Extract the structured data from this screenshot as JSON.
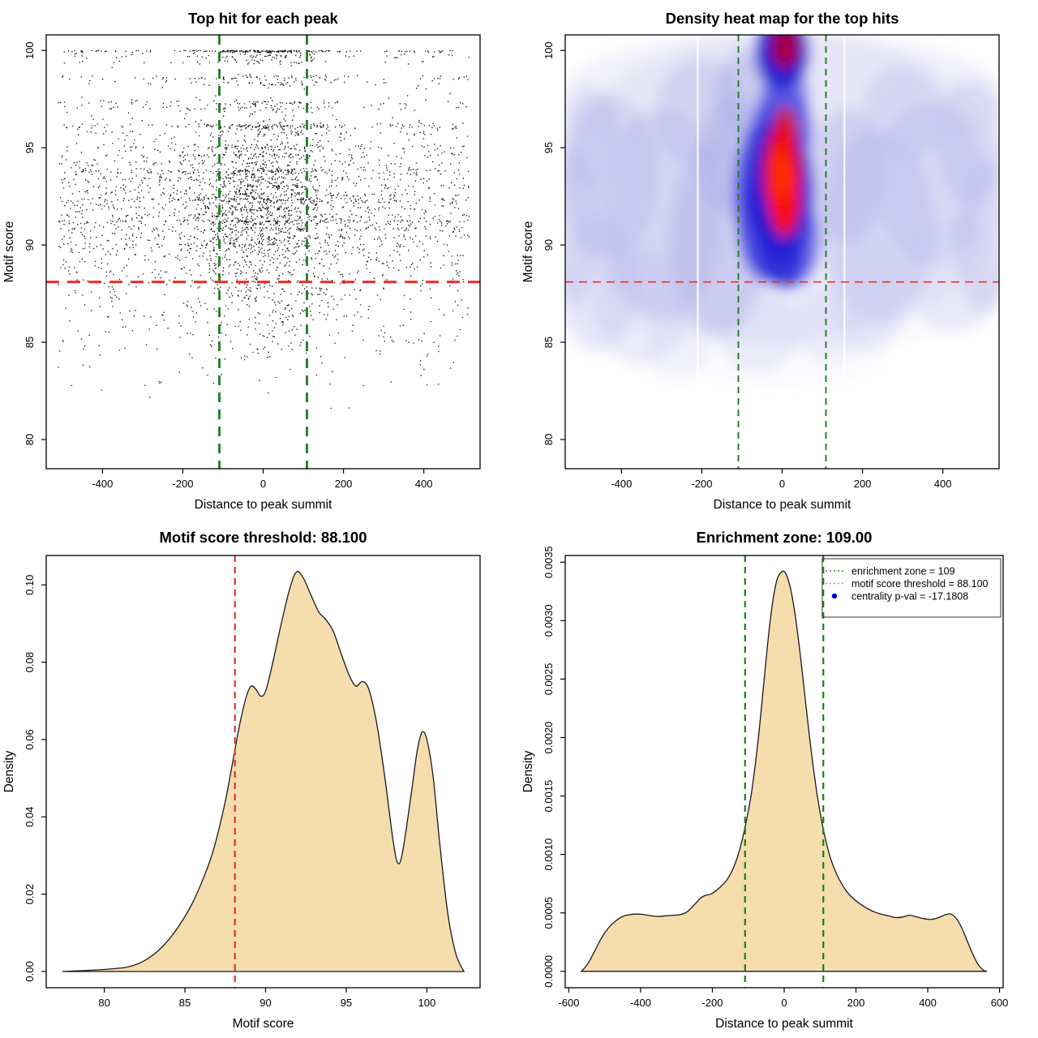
{
  "page": {
    "background": "#ffffff"
  },
  "colors": {
    "threshold_red": "#e53229",
    "enrichment_green": "#1d7d1d",
    "density_fill_tan": "#f5ddae",
    "curve_stroke": "#1a1a1a",
    "point_black": "#000000",
    "legend_red_key": "#e87b7b",
    "legend_blue_dot": "#0000e6",
    "heat_hot_red": "#ff2d00",
    "heat_blue": "#1414cf"
  },
  "chart_data": [
    {
      "id": "top-hit-scatter",
      "type": "scatter",
      "title": "Top hit for each peak",
      "xlabel": "Distance to peak summit",
      "ylabel": "Motif score",
      "xlim": [
        -540,
        540
      ],
      "ylim": [
        78.5,
        100.8
      ],
      "xticks": {
        "values": [
          -400,
          -200,
          0,
          200,
          400
        ],
        "labels": [
          "-400",
          "-200",
          "0",
          "200",
          "400"
        ]
      },
      "yticks": {
        "values": [
          80,
          85,
          90,
          95,
          100
        ],
        "labels": [
          "80",
          "85",
          "90",
          "95",
          "100"
        ]
      },
      "vlines": [
        {
          "x": -109,
          "color": "#1d7d1d",
          "width": 2.8,
          "dash": "12,9",
          "name": "enrichment-zone-left-line"
        },
        {
          "x": 109,
          "color": "#1d7d1d",
          "width": 2.8,
          "dash": "12,9",
          "name": "enrichment-zone-right-line"
        }
      ],
      "hlines": [
        {
          "y": 88.1,
          "color": "#e53229",
          "width": 3.2,
          "dash": "16,10",
          "name": "motif-threshold-line"
        }
      ],
      "scatter": {
        "seed": 1337,
        "dot_size": 1.35,
        "x_uniform_max": 512,
        "bands": [
          [
            100,
            230,
            0.62
          ],
          [
            99.7,
            70,
            0.5
          ],
          [
            99.4,
            45,
            0.5
          ],
          [
            98.6,
            80,
            0.45
          ],
          [
            98.3,
            55,
            0.45
          ],
          [
            97.3,
            70,
            0.45
          ],
          [
            97.0,
            55,
            0.45
          ],
          [
            96.1,
            170,
            0.5
          ],
          [
            95.7,
            45,
            0.45
          ],
          [
            95.0,
            70,
            0.45
          ],
          [
            94.6,
            55,
            0.45
          ],
          [
            94.2,
            45,
            0.5
          ],
          [
            93.8,
            140,
            0.55
          ],
          [
            93.4,
            65,
            0.5
          ],
          [
            93.0,
            55,
            0.5
          ],
          [
            92.6,
            65,
            0.5
          ],
          [
            92.3,
            150,
            0.55
          ],
          [
            91.9,
            65,
            0.5
          ],
          [
            91.5,
            55,
            0.5
          ],
          [
            91.2,
            160,
            0.5
          ],
          [
            90.8,
            60,
            0.45
          ],
          [
            90.4,
            55,
            0.45
          ],
          [
            90.0,
            50,
            0.45
          ]
        ],
        "clusters": [
          {
            "n": 2150,
            "mean": 91.2,
            "sd": 2.9,
            "ymin": 78.8,
            "ymax": 99.3,
            "cf": 0.42,
            "xsd": 100
          },
          {
            "n": 140,
            "mean": 85.3,
            "sd": 1.9,
            "ymin": 79.2,
            "ymax": 88.5,
            "cf": 0.35,
            "xsd": 130
          }
        ]
      }
    },
    {
      "id": "density-heatmap",
      "type": "heatmap",
      "title": "Density heat map for the top hits",
      "xlabel": "Distance to peak summit",
      "ylabel": "Motif score",
      "xlim": [
        -540,
        540
      ],
      "ylim": [
        78.5,
        100.8
      ],
      "xticks": {
        "values": [
          -400,
          -200,
          0,
          200,
          400
        ],
        "labels": [
          "-400",
          "-200",
          "0",
          "200",
          "400"
        ]
      },
      "yticks": {
        "values": [
          80,
          85,
          90,
          95,
          100
        ],
        "labels": [
          "80",
          "85",
          "90",
          "95",
          "100"
        ]
      },
      "vlines": [
        {
          "x": -109,
          "color": "#1d7d1d",
          "width": 1.9,
          "dash": "8,6",
          "name": "enrichment-zone-left-line"
        },
        {
          "x": 109,
          "color": "#1d7d1d",
          "width": 1.9,
          "dash": "8,6",
          "name": "enrichment-zone-right-line"
        }
      ],
      "hlines": [
        {
          "y": 88.1,
          "color": "#e53229",
          "width": 1.7,
          "dash": "10,7",
          "name": "motif-threshold-line"
        }
      ],
      "white_vlines": [
        -210,
        155
      ],
      "blobs": [
        [
          0,
          93,
          560,
          8,
          "#dcdcf6",
          0.5
        ],
        [
          0,
          97.5,
          560,
          3.5,
          "#dcdcf6",
          0.4
        ],
        [
          0,
          87.5,
          560,
          2.8,
          "#e8e8fa",
          0.3
        ],
        [
          -430,
          93.5,
          120,
          4.2,
          "#b8b8ec",
          0.42
        ],
        [
          -300,
          91.5,
          150,
          5.5,
          "#b8b8ec",
          0.45
        ],
        [
          -160,
          90.3,
          120,
          5,
          "#b0b0ea",
          0.5
        ],
        [
          -460,
          88,
          100,
          3.5,
          "#b8b8ec",
          0.32
        ],
        [
          -350,
          86.8,
          120,
          3,
          "#c0c0ee",
          0.3
        ],
        [
          -205,
          96.8,
          110,
          2.8,
          "#b8b8ec",
          0.42
        ],
        [
          -90,
          97.8,
          80,
          2.2,
          "#acace9",
          0.5
        ],
        [
          -480,
          95.5,
          70,
          2.6,
          "#b8b8ec",
          0.36
        ],
        [
          -260,
          84.8,
          80,
          1.8,
          "#ccccf1",
          0.22
        ],
        [
          240,
          91,
          140,
          5,
          "#b8b8ec",
          0.44
        ],
        [
          370,
          93.2,
          140,
          4.2,
          "#bcbcee",
          0.42
        ],
        [
          470,
          95.3,
          90,
          3.2,
          "#b8b8ec",
          0.38
        ],
        [
          300,
          96.8,
          100,
          2.5,
          "#bcbcee",
          0.38
        ],
        [
          430,
          88.5,
          120,
          3,
          "#c6c6f0",
          0.3
        ],
        [
          210,
          87.3,
          100,
          2.8,
          "#c6c6f0",
          0.32
        ],
        [
          120,
          85.8,
          90,
          2,
          "#d0d0f3",
          0.26
        ],
        [
          -60,
          85.6,
          100,
          2.2,
          "#c6c6f0",
          0.3
        ],
        [
          0,
          84.3,
          260,
          1.6,
          "#e0e0f8",
          0.16
        ],
        [
          500,
          90.5,
          70,
          4,
          "#b8b8ec",
          0.36
        ],
        [
          -515,
          91,
          60,
          4,
          "#b8b8ec",
          0.36
        ],
        [
          160,
          93.5,
          90,
          3.5,
          "#b0b0ea",
          0.42
        ],
        [
          -120,
          94.5,
          90,
          3,
          "#acace9",
          0.48
        ],
        [
          -20,
          92.6,
          100,
          4.4,
          "#4343e2",
          0.85
        ],
        [
          15,
          90.2,
          80,
          2.5,
          "#4343e2",
          0.7
        ],
        [
          0,
          95.9,
          75,
          2.3,
          "#4343e2",
          0.8
        ],
        [
          8,
          97.7,
          60,
          1.6,
          "#5050e4",
          0.55
        ],
        [
          -40,
          91,
          70,
          3,
          "#4343e2",
          0.55
        ],
        [
          0,
          99.9,
          68,
          2,
          "#2a2ad6",
          0.92
        ],
        [
          -8,
          92.9,
          78,
          3.6,
          "#1414cf",
          0.9
        ],
        [
          3,
          99.97,
          52,
          1.5,
          "#1111cc",
          0.9
        ],
        [
          0,
          89.5,
          58,
          1.7,
          "#2222d2",
          0.65
        ],
        [
          0,
          93.7,
          48,
          2.5,
          "#e60000",
          0.95
        ],
        [
          6,
          92.5,
          40,
          2.1,
          "#ff0d00",
          0.92
        ],
        [
          -2,
          93.9,
          27,
          1.6,
          "#ff2d00",
          1
        ],
        [
          8,
          95.8,
          30,
          1.3,
          "#f01000",
          0.8
        ],
        [
          8,
          100.2,
          36,
          1.15,
          "#ad0040",
          0.95
        ]
      ]
    },
    {
      "id": "motif-score-density",
      "type": "density",
      "title": "Motif score threshold: 88.100",
      "xlabel": "Motif score",
      "ylabel": "Density",
      "xlim": [
        76.4,
        103.3
      ],
      "ylim": [
        -0.0042,
        0.1076
      ],
      "xticks": {
        "values": [
          80,
          85,
          90,
          95,
          100
        ],
        "labels": [
          "80",
          "85",
          "90",
          "95",
          "100"
        ]
      },
      "yticks": {
        "values": [
          0,
          0.02,
          0.04,
          0.06,
          0.08,
          0.1
        ],
        "labels": [
          "0.00",
          "0.02",
          "0.04",
          "0.06",
          "0.08",
          "0.10"
        ]
      },
      "vlines": [
        {
          "x": 88.1,
          "color": "#e53229",
          "width": 2.2,
          "dash": "8,6",
          "name": "motif-threshold-line"
        }
      ],
      "hlines": [],
      "fill": "#f5ddae",
      "curve": [
        [
          77.4,
          0
        ],
        [
          78.5,
          0.0002
        ],
        [
          79.5,
          0.0004
        ],
        [
          80.5,
          0.0007
        ],
        [
          81.5,
          0.0012
        ],
        [
          82.5,
          0.0028
        ],
        [
          83.5,
          0.006
        ],
        [
          84.5,
          0.011
        ],
        [
          85.5,
          0.018
        ],
        [
          86.5,
          0.028
        ],
        [
          87,
          0.035
        ],
        [
          87.5,
          0.044
        ],
        [
          88,
          0.055
        ],
        [
          88.4,
          0.064
        ],
        [
          88.8,
          0.071
        ],
        [
          89.1,
          0.0738
        ],
        [
          89.4,
          0.073
        ],
        [
          89.7,
          0.0712
        ],
        [
          90,
          0.0725
        ],
        [
          90.4,
          0.079
        ],
        [
          91,
          0.0905
        ],
        [
          91.5,
          0.099
        ],
        [
          91.9,
          0.1033
        ],
        [
          92.3,
          0.1021
        ],
        [
          92.8,
          0.0975
        ],
        [
          93.3,
          0.093
        ],
        [
          93.7,
          0.0912
        ],
        [
          94.2,
          0.088
        ],
        [
          94.7,
          0.082
        ],
        [
          95.2,
          0.0765
        ],
        [
          95.6,
          0.0738
        ],
        [
          96,
          0.075
        ],
        [
          96.4,
          0.073
        ],
        [
          96.9,
          0.064
        ],
        [
          97.4,
          0.05
        ],
        [
          97.9,
          0.034
        ],
        [
          98.2,
          0.028
        ],
        [
          98.5,
          0.031
        ],
        [
          99,
          0.045
        ],
        [
          99.4,
          0.057
        ],
        [
          99.7,
          0.0619
        ],
        [
          100,
          0.06
        ],
        [
          100.4,
          0.05
        ],
        [
          100.8,
          0.033
        ],
        [
          101.3,
          0.015
        ],
        [
          101.8,
          0.0045
        ],
        [
          102.3,
          0
        ]
      ]
    },
    {
      "id": "distance-density",
      "type": "density",
      "title": "Enrichment zone: 109.00",
      "xlabel": "Distance to peak summit",
      "ylabel": "Density",
      "xlim": [
        -610,
        610
      ],
      "ylim": [
        -0.00014,
        0.003557
      ],
      "xticks": {
        "values": [
          -600,
          -400,
          -200,
          0,
          200,
          400,
          600
        ],
        "labels": [
          "-600",
          "-400",
          "-200",
          "0",
          "200",
          "400",
          "600"
        ]
      },
      "yticks": {
        "values": [
          0,
          0.0005,
          0.001,
          0.0015,
          0.002,
          0.0025,
          0.003,
          0.0035
        ],
        "labels": [
          "0.0000",
          "0.0005",
          "0.0010",
          "0.0015",
          "0.0020",
          "0.0025",
          "0.0030",
          "0.0035"
        ]
      },
      "vlines": [
        {
          "x": -109,
          "color": "#1d7d1d",
          "width": 2.2,
          "dash": "8,6",
          "name": "enrichment-zone-left-line"
        },
        {
          "x": 109,
          "color": "#1d7d1d",
          "width": 2.2,
          "dash": "8,6",
          "name": "enrichment-zone-right-line"
        }
      ],
      "hlines": [],
      "fill": "#f5ddae",
      "curve": [
        [
          -565,
          0
        ],
        [
          -548,
          6e-05
        ],
        [
          -530,
          0.00016
        ],
        [
          -510,
          0.00028
        ],
        [
          -490,
          0.00037
        ],
        [
          -470,
          0.00043
        ],
        [
          -450,
          0.00047
        ],
        [
          -430,
          0.000485
        ],
        [
          -410,
          0.00049
        ],
        [
          -390,
          0.000485
        ],
        [
          -370,
          0.000475
        ],
        [
          -350,
          0.00047
        ],
        [
          -330,
          0.000475
        ],
        [
          -310,
          0.00048
        ],
        [
          -290,
          0.000485
        ],
        [
          -270,
          0.00051
        ],
        [
          -250,
          0.00057
        ],
        [
          -235,
          0.00062
        ],
        [
          -220,
          0.00065
        ],
        [
          -205,
          0.00066
        ],
        [
          -190,
          0.00069
        ],
        [
          -175,
          0.00073
        ],
        [
          -160,
          0.00078
        ],
        [
          -145,
          0.00086
        ],
        [
          -130,
          0.00098
        ],
        [
          -115,
          0.00115
        ],
        [
          -100,
          0.00137
        ],
        [
          -90,
          0.00155
        ],
        [
          -80,
          0.00178
        ],
        [
          -70,
          0.00205
        ],
        [
          -60,
          0.00236
        ],
        [
          -50,
          0.00268
        ],
        [
          -40,
          0.00297
        ],
        [
          -30,
          0.0032
        ],
        [
          -20,
          0.00335
        ],
        [
          -10,
          0.00341
        ],
        [
          0,
          0.00342
        ],
        [
          10,
          0.00336
        ],
        [
          20,
          0.00324
        ],
        [
          30,
          0.00306
        ],
        [
          40,
          0.00283
        ],
        [
          50,
          0.00257
        ],
        [
          60,
          0.00229
        ],
        [
          70,
          0.00202
        ],
        [
          80,
          0.00177
        ],
        [
          90,
          0.00155
        ],
        [
          100,
          0.00136
        ],
        [
          110,
          0.0012
        ],
        [
          120,
          0.00107
        ],
        [
          130,
          0.00096
        ],
        [
          145,
          0.00084
        ],
        [
          160,
          0.00075
        ],
        [
          175,
          0.00068
        ],
        [
          190,
          0.00063
        ],
        [
          210,
          0.00058
        ],
        [
          230,
          0.00054
        ],
        [
          250,
          0.00051
        ],
        [
          270,
          0.00049
        ],
        [
          290,
          0.000475
        ],
        [
          310,
          0.00046
        ],
        [
          330,
          0.000465
        ],
        [
          350,
          0.00048
        ],
        [
          370,
          0.000465
        ],
        [
          390,
          0.00045
        ],
        [
          410,
          0.000445
        ],
        [
          430,
          0.00046
        ],
        [
          450,
          0.000485
        ],
        [
          465,
          0.00049
        ],
        [
          480,
          0.00045
        ],
        [
          495,
          0.00037
        ],
        [
          510,
          0.00026
        ],
        [
          525,
          0.00015
        ],
        [
          540,
          6e-05
        ],
        [
          555,
          1e-05
        ],
        [
          565,
          0
        ]
      ],
      "legend": {
        "items": [
          {
            "type": "line",
            "color": "#2e8b2e",
            "label": "enrichment zone = 109"
          },
          {
            "type": "line",
            "color": "#e87b7b",
            "label": "motif score threshold = 88.100"
          },
          {
            "type": "dot",
            "color": "#0000e6",
            "label": "centrality p-val = -17.1808"
          }
        ]
      }
    }
  ]
}
